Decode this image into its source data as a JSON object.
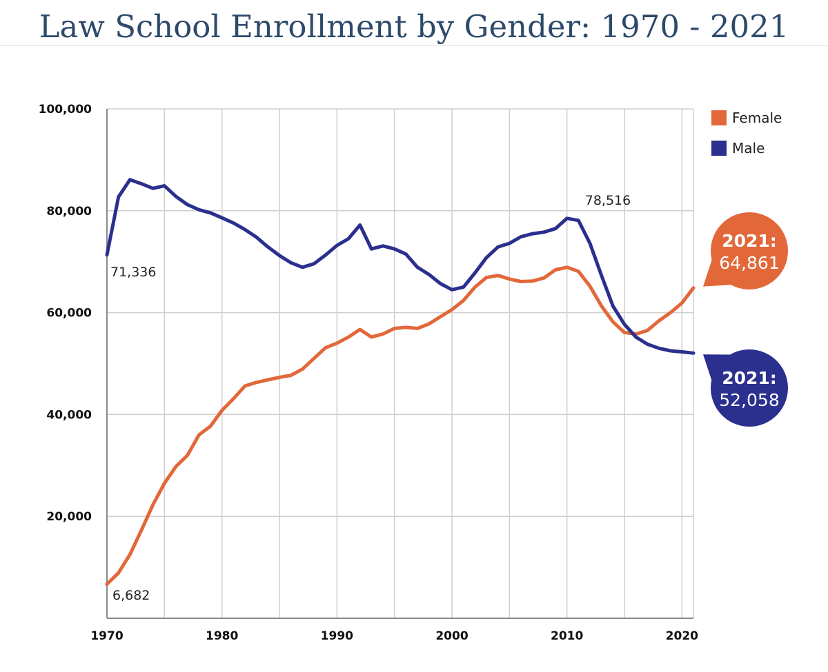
{
  "title": "Law School Enrollment by Gender: 1970 - 2021",
  "chart_data": {
    "type": "line",
    "title": "Law School Enrollment by Gender: 1970 - 2021",
    "xlabel": "",
    "ylabel": "",
    "xlim": [
      1970,
      2021
    ],
    "ylim": [
      0,
      100000
    ],
    "x_ticks": [
      1970,
      1980,
      1990,
      2000,
      2010,
      2020
    ],
    "x_tick_labels": [
      "1970",
      "1980",
      "1990",
      "2000",
      "2010",
      "2020"
    ],
    "y_ticks": [
      20000,
      40000,
      60000,
      80000,
      100000
    ],
    "y_tick_labels": [
      "20,000",
      "40,000",
      "60,000",
      "80,000",
      "100,000"
    ],
    "grid": true,
    "legend": "top-right",
    "x": [
      1970,
      1971,
      1972,
      1973,
      1974,
      1975,
      1976,
      1977,
      1978,
      1979,
      1980,
      1981,
      1982,
      1983,
      1984,
      1985,
      1986,
      1987,
      1988,
      1989,
      1990,
      1991,
      1992,
      1993,
      1994,
      1995,
      1996,
      1997,
      1998,
      1999,
      2000,
      2001,
      2002,
      2003,
      2004,
      2005,
      2006,
      2007,
      2008,
      2009,
      2010,
      2011,
      2012,
      2013,
      2014,
      2015,
      2016,
      2017,
      2018,
      2019,
      2020,
      2021
    ],
    "series": [
      {
        "name": "Female",
        "color": "#e2683a",
        "values": [
          6682,
          8900,
          12500,
          17300,
          22300,
          26500,
          29800,
          32000,
          36000,
          37700,
          40800,
          43100,
          45600,
          46300,
          46800,
          47300,
          47700,
          48900,
          51000,
          53100,
          54000,
          55200,
          56700,
          55200,
          55800,
          56900,
          57100,
          56900,
          57800,
          59200,
          60600,
          62400,
          65000,
          66900,
          67300,
          66600,
          66100,
          66200,
          66800,
          68400,
          68900,
          68100,
          65200,
          61300,
          58200,
          56100,
          55800,
          56500,
          58400,
          60000,
          61900,
          64861
        ]
      },
      {
        "name": "Male",
        "color": "#2b2f8e",
        "values": [
          71336,
          82700,
          86100,
          85300,
          84400,
          84900,
          82800,
          81200,
          80200,
          79600,
          78600,
          77600,
          76300,
          74800,
          72900,
          71200,
          69800,
          68900,
          69600,
          71300,
          73200,
          74500,
          77200,
          72500,
          73100,
          72500,
          71500,
          68900,
          67500,
          65700,
          64500,
          65000,
          67800,
          70800,
          72900,
          73600,
          74900,
          75500,
          75800,
          76500,
          78516,
          78100,
          73600,
          67300,
          61300,
          57700,
          55200,
          53800,
          53000,
          52500,
          52300,
          52058
        ]
      }
    ],
    "annotations": {
      "female_start": "6,682",
      "male_start": "71,336",
      "male_peak": "78,516",
      "female_end_year": "2021:",
      "female_end_value": "64,861",
      "male_end_year": "2021:",
      "male_end_value": "52,058"
    }
  }
}
